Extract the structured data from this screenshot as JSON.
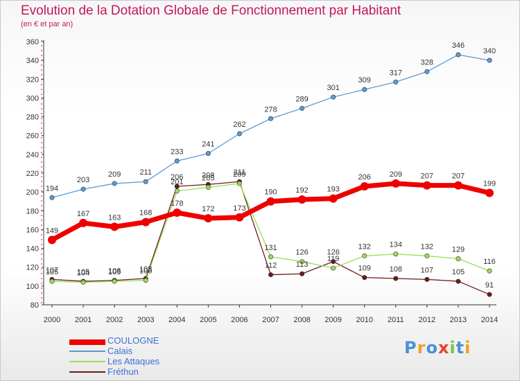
{
  "header": {
    "title": "Evolution de la Dotation Globale de Fonctionnement par Habitant",
    "subtitle": "(en € et par an)"
  },
  "brand": {
    "text": "Proxiti"
  },
  "chart_data": {
    "type": "line",
    "title": "Evolution de la Dotation Globale de Fonctionnement par Habitant",
    "subtitle": "(en € et par an)",
    "x": [
      2000,
      2001,
      2002,
      2003,
      2004,
      2005,
      2006,
      2007,
      2008,
      2009,
      2010,
      2011,
      2012,
      2013,
      2014
    ],
    "ylim": [
      80,
      360
    ],
    "yticks": [
      80,
      100,
      120,
      140,
      160,
      180,
      200,
      220,
      240,
      260,
      280,
      300,
      320,
      340,
      360
    ],
    "grid": false,
    "legend_position": "bottom-left",
    "series": [
      {
        "name": "COULOGNE",
        "color": "#ee0000",
        "values": [
          149,
          167,
          163,
          168,
          178,
          172,
          173,
          190,
          192,
          193,
          206,
          209,
          207,
          207,
          199
        ]
      },
      {
        "name": "Calais",
        "color": "#5b9bd5",
        "values": [
          194,
          203,
          209,
          211,
          233,
          241,
          262,
          278,
          289,
          301,
          309,
          317,
          328,
          346,
          340
        ]
      },
      {
        "name": "Les Attaques",
        "color": "#99dd55",
        "values": [
          105,
          104,
          105,
          106,
          201,
          205,
          209,
          131,
          126,
          119,
          132,
          134,
          132,
          129,
          116
        ]
      },
      {
        "name": "Fréthun",
        "color": "#6b1a1a",
        "values": [
          107,
          105,
          106,
          108,
          206,
          208,
          211,
          112,
          113,
          126,
          109,
          108,
          107,
          105,
          91
        ]
      }
    ]
  }
}
